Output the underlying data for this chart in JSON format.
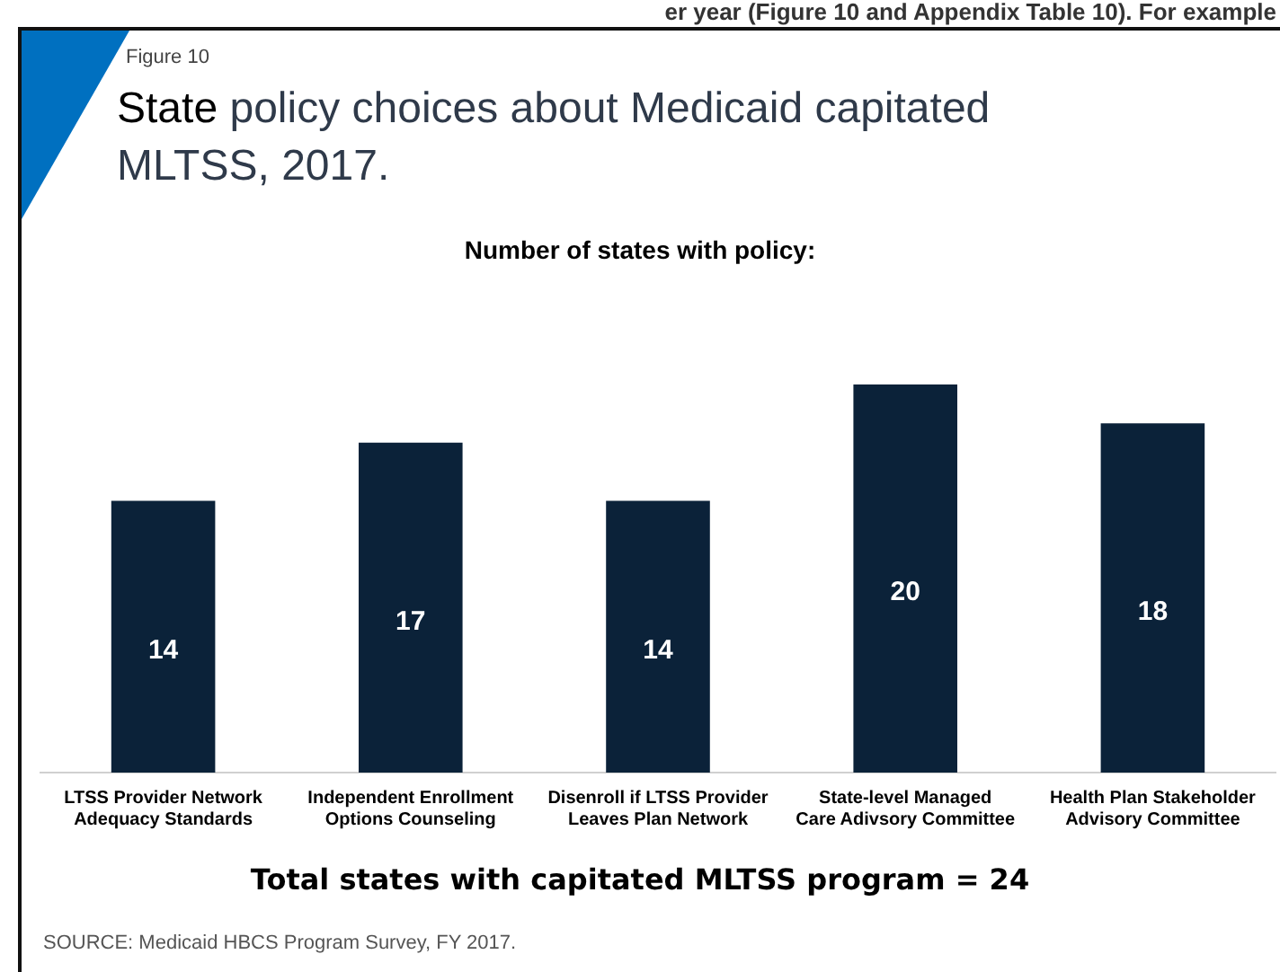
{
  "chart_data": {
    "type": "bar",
    "title": "State policy choices about Medicaid capitated MLTSS, 2017.",
    "subtitle": "Number of states with policy:",
    "categories": [
      "LTSS Provider Network Adequacy Standards",
      "Independent Enrollment Options Counseling",
      "Disenroll if LTSS Provider Leaves Plan Network",
      "State-level Managed Care Adivsory Committee",
      "Health Plan Stakeholder Advisory Committee"
    ],
    "values": [
      14,
      17,
      14,
      20,
      18
    ],
    "color": "#0b2239",
    "data_labels": true,
    "grid": false,
    "legend": false,
    "tick_labels": "x",
    "annotations": [
      "er year (Figure 10 and Appendix Table 10). For example",
      "Figure 10",
      "Total states with capitated MLTSS program = 24",
      "SOURCE:  Medicaid HBCS Program Survey, FY 2017."
    ]
  }
}
